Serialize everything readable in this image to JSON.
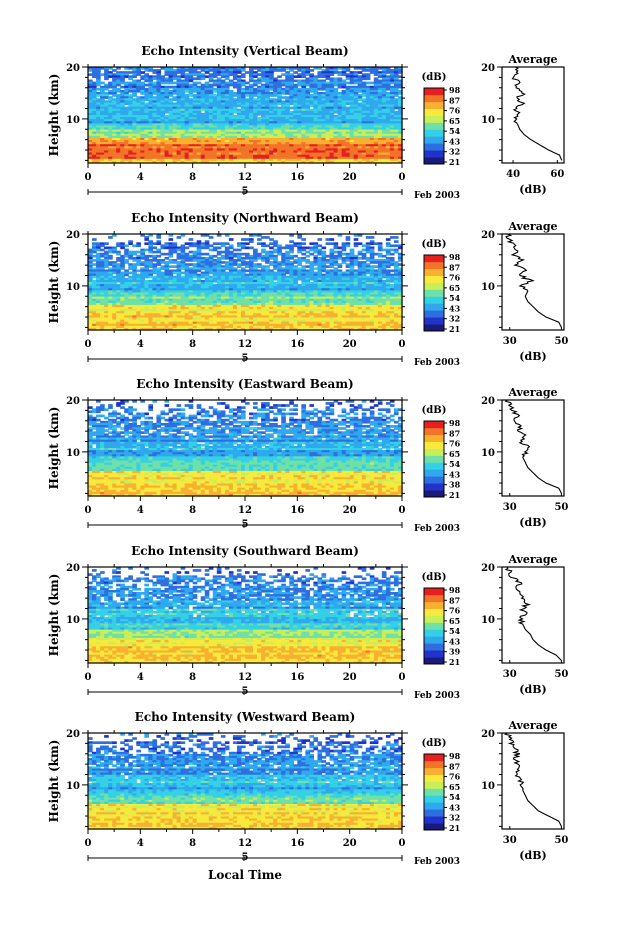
{
  "chart_data": {
    "type": "heatmap",
    "date_label": "Feb 2003",
    "x_axis_label": "Local Time",
    "x_ticks": [
      "0",
      "4",
      "8",
      "12",
      "16",
      "20",
      "0"
    ],
    "day_label": "5",
    "xlim": [
      0,
      24
    ],
    "ylabel": "Height (km)",
    "y_ticks": [
      "20",
      "10"
    ],
    "ylim": [
      1.5,
      20
    ],
    "colorbar_unit": "(dB)",
    "colors": [
      "#1a1a7a",
      "#2233cc",
      "#2e6fe0",
      "#2fa8ee",
      "#34d0e6",
      "#6ee0a8",
      "#c8ee5a",
      "#f8ea3c",
      "#f8b030",
      "#f27428",
      "#e62020"
    ],
    "profile": {
      "title": "Average",
      "xlabel": "(dB)",
      "heights": [
        2,
        3,
        4,
        5,
        6,
        7,
        8,
        9,
        10,
        11,
        12,
        13,
        14,
        15,
        16,
        17,
        18,
        19,
        20
      ]
    },
    "panels": [
      {
        "title": "Echo Intensity (Vertical Beam)",
        "colorbar_ticks": [
          "98",
          "87",
          "76",
          "65",
          "54",
          "43",
          "32",
          "21"
        ],
        "profile_xticks": [
          "40",
          "60"
        ],
        "profile_xlim": [
          35,
          63
        ],
        "profile_values": [
          62,
          61,
          56,
          52,
          48,
          45,
          43,
          42,
          41,
          43,
          41,
          44,
          42,
          45,
          41,
          43,
          40,
          42,
          41
        ]
      },
      {
        "title": "Echo Intensity (Northward Beam)",
        "colorbar_ticks": [
          "98",
          "87",
          "76",
          "65",
          "54",
          "43",
          "32",
          "21"
        ],
        "profile_xticks": [
          "30",
          "50"
        ],
        "profile_xlim": [
          27,
          51
        ],
        "profile_values": [
          50,
          49,
          44,
          41,
          39,
          37,
          36,
          37,
          35,
          38,
          34,
          36,
          33,
          35,
          32,
          33,
          31,
          30,
          29
        ]
      },
      {
        "title": "Echo Intensity (Eastward Beam)",
        "colorbar_ticks": [
          "98",
          "87",
          "76",
          "65",
          "54",
          "43",
          "38",
          "21"
        ],
        "profile_xticks": [
          "30",
          "50"
        ],
        "profile_xlim": [
          27,
          51
        ],
        "profile_values": [
          50,
          49,
          44,
          41,
          39,
          37,
          36,
          35,
          36,
          37,
          34,
          36,
          33,
          34,
          32,
          33,
          31,
          30,
          29
        ]
      },
      {
        "title": "Echo Intensity (Southward Beam)",
        "colorbar_ticks": [
          "98",
          "87",
          "76",
          "65",
          "54",
          "43",
          "39",
          "21"
        ],
        "profile_xticks": [
          "30",
          "50"
        ],
        "profile_xlim": [
          27,
          51
        ],
        "profile_values": [
          50,
          48,
          44,
          41,
          39,
          38,
          36,
          35,
          34,
          36,
          35,
          37,
          34,
          35,
          33,
          34,
          31,
          30,
          29
        ]
      },
      {
        "title": "Echo Intensity (Westward Beam)",
        "colorbar_ticks": [
          "98",
          "87",
          "76",
          "65",
          "54",
          "43",
          "32",
          "21"
        ],
        "profile_xticks": [
          "30",
          "50"
        ],
        "profile_xlim": [
          27,
          51
        ],
        "profile_values": [
          50,
          49,
          45,
          41,
          39,
          37,
          36,
          35,
          35,
          34,
          33,
          34,
          33,
          32,
          33,
          32,
          31,
          30,
          29
        ]
      }
    ]
  }
}
